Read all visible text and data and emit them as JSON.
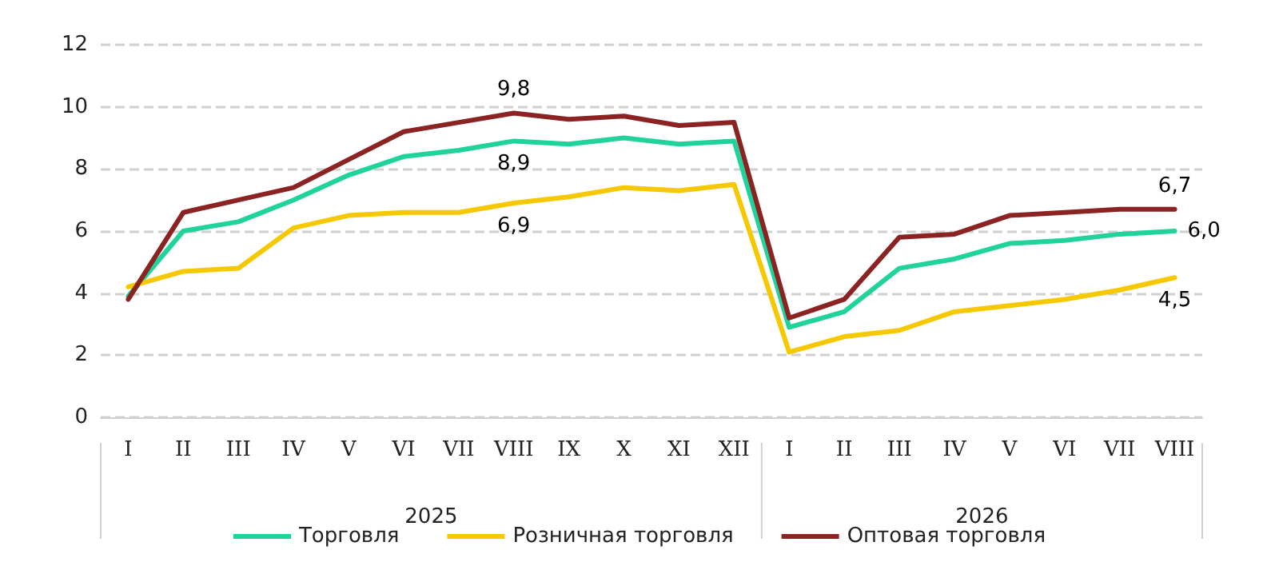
{
  "chart_data": {
    "type": "line",
    "categories": [
      "I",
      "II",
      "III",
      "IV",
      "V",
      "VI",
      "VII",
      "VIII",
      "IX",
      "X",
      "XI",
      "XII",
      "I",
      "II",
      "III",
      "IV",
      "V",
      "VI",
      "VII",
      "VIII"
    ],
    "series": [
      {
        "name": "Торговля",
        "color": "#1fd39a",
        "values": [
          3.9,
          6.0,
          6.3,
          7.0,
          7.8,
          8.4,
          8.6,
          8.9,
          8.8,
          9.0,
          8.8,
          8.9,
          2.9,
          3.4,
          4.8,
          5.1,
          5.6,
          5.7,
          5.9,
          6.0
        ],
        "value_labels": [
          null,
          null,
          null,
          null,
          null,
          null,
          null,
          "8,9",
          null,
          null,
          null,
          null,
          null,
          null,
          null,
          null,
          null,
          null,
          null,
          "6,0"
        ]
      },
      {
        "name": "Розничная торговля",
        "color": "#f5c800",
        "values": [
          4.2,
          4.7,
          4.8,
          6.1,
          6.5,
          6.6,
          6.6,
          6.9,
          7.1,
          7.4,
          7.3,
          7.5,
          2.1,
          2.6,
          2.8,
          3.4,
          3.6,
          3.8,
          4.1,
          4.5
        ],
        "value_labels": [
          null,
          null,
          null,
          null,
          null,
          null,
          null,
          "6,9",
          null,
          null,
          null,
          null,
          null,
          null,
          null,
          null,
          null,
          null,
          null,
          "4,5"
        ]
      },
      {
        "name": "Оптовая торговля",
        "color": "#8b2323",
        "values": [
          3.8,
          6.6,
          7.0,
          7.4,
          8.3,
          9.2,
          9.5,
          9.8,
          9.6,
          9.7,
          9.4,
          9.5,
          3.2,
          3.8,
          5.8,
          5.9,
          6.5,
          6.6,
          6.7,
          6.7
        ],
        "value_labels": [
          null,
          null,
          null,
          null,
          null,
          null,
          null,
          "9,8",
          null,
          null,
          null,
          null,
          null,
          null,
          null,
          null,
          null,
          null,
          null,
          "6,7"
        ]
      }
    ],
    "annotations": [
      "2025",
      "2026"
    ],
    "ylim": [
      0,
      12
    ],
    "yticks": [
      0,
      2,
      4,
      6,
      8,
      10,
      12
    ],
    "grid": "y",
    "legend": "bottom",
    "marker": "none",
    "line_style": "solid"
  }
}
